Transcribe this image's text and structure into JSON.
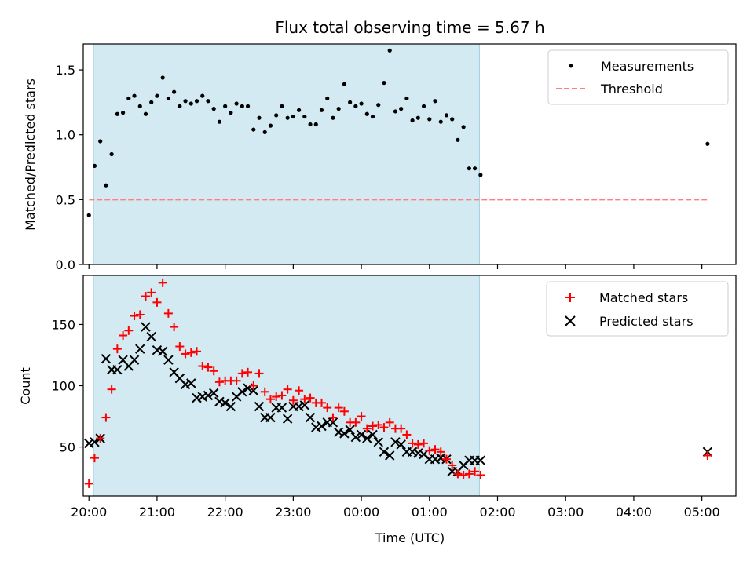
{
  "chart_data": [
    {
      "type": "scatter",
      "title": "Flux total observing time = 5.67 h",
      "ylabel": "Matched/Predicted stars",
      "xlabel": "",
      "xlim": [
        "19:55",
        "05:30"
      ],
      "ylim": [
        0,
        1.7
      ],
      "yticks": [
        "0.0",
        "0.5",
        "1.0",
        "1.5"
      ],
      "shaded_interval": [
        "20:04",
        "01:44"
      ],
      "legend_position": "upper right",
      "series": [
        {
          "name": "Measurements",
          "marker": "dot",
          "color": "#000000",
          "x": [
            "20:00",
            "20:05",
            "20:10",
            "20:15",
            "20:20",
            "20:25",
            "20:30",
            "20:35",
            "20:40",
            "20:45",
            "20:50",
            "20:55",
            "21:00",
            "21:05",
            "21:10",
            "21:15",
            "21:20",
            "21:25",
            "21:30",
            "21:35",
            "21:40",
            "21:45",
            "21:50",
            "21:55",
            "22:00",
            "22:05",
            "22:10",
            "22:15",
            "22:20",
            "22:25",
            "22:30",
            "22:35",
            "22:40",
            "22:45",
            "22:50",
            "22:55",
            "23:00",
            "23:05",
            "23:10",
            "23:15",
            "23:20",
            "23:25",
            "23:30",
            "23:35",
            "23:40",
            "23:45",
            "23:50",
            "23:55",
            "00:00",
            "00:05",
            "00:10",
            "00:15",
            "00:20",
            "00:25",
            "00:30",
            "00:35",
            "00:40",
            "00:45",
            "00:50",
            "00:55",
            "01:00",
            "01:05",
            "01:10",
            "01:15",
            "01:20",
            "01:25",
            "01:30",
            "01:35",
            "01:40",
            "01:45",
            "05:05"
          ],
          "y": [
            0.38,
            0.76,
            0.95,
            0.61,
            0.85,
            1.16,
            1.17,
            1.28,
            1.3,
            1.22,
            1.16,
            1.25,
            1.3,
            1.44,
            1.28,
            1.33,
            1.22,
            1.26,
            1.24,
            1.26,
            1.3,
            1.26,
            1.2,
            1.1,
            1.22,
            1.17,
            1.24,
            1.22,
            1.22,
            1.04,
            1.13,
            1.02,
            1.07,
            1.15,
            1.22,
            1.13,
            1.14,
            1.19,
            1.14,
            1.08,
            1.08,
            1.19,
            1.28,
            1.13,
            1.2,
            1.39,
            1.25,
            1.22,
            1.24,
            1.16,
            1.14,
            1.23,
            1.4,
            1.65,
            1.18,
            1.2,
            1.28,
            1.11,
            1.13,
            1.22,
            1.12,
            1.26,
            1.1,
            1.15,
            1.12,
            0.96,
            1.06,
            0.74,
            0.74,
            0.69,
            0.93
          ]
        },
        {
          "name": "Threshold",
          "marker": "dashed-line",
          "color": "#ff7f7f",
          "x": [
            "20:00",
            "05:05"
          ],
          "y": [
            0.5,
            0.5
          ]
        }
      ]
    },
    {
      "type": "scatter",
      "title": "",
      "ylabel": "Count",
      "xlabel": "Time (UTC)",
      "xlim": [
        "19:55",
        "05:30"
      ],
      "ylim": [
        10,
        190
      ],
      "yticks": [
        "50",
        "100",
        "150"
      ],
      "xticks": [
        "20:00",
        "21:00",
        "22:00",
        "23:00",
        "00:00",
        "01:00",
        "02:00",
        "03:00",
        "04:00",
        "05:00"
      ],
      "shaded_interval": [
        "20:04",
        "01:44"
      ],
      "legend_position": "upper right",
      "series": [
        {
          "name": "Matched stars",
          "marker": "plus",
          "color": "#ff0000",
          "x": [
            "20:00",
            "20:05",
            "20:10",
            "20:15",
            "20:20",
            "20:25",
            "20:30",
            "20:35",
            "20:40",
            "20:45",
            "20:50",
            "20:55",
            "21:00",
            "21:05",
            "21:10",
            "21:15",
            "21:20",
            "21:25",
            "21:30",
            "21:35",
            "21:40",
            "21:45",
            "21:50",
            "21:55",
            "22:00",
            "22:05",
            "22:10",
            "22:15",
            "22:20",
            "22:25",
            "22:30",
            "22:35",
            "22:40",
            "22:45",
            "22:50",
            "22:55",
            "23:00",
            "23:05",
            "23:10",
            "23:15",
            "23:20",
            "23:25",
            "23:30",
            "23:35",
            "23:40",
            "23:45",
            "23:50",
            "23:55",
            "00:00",
            "00:05",
            "00:10",
            "00:15",
            "00:20",
            "00:25",
            "00:30",
            "00:35",
            "00:40",
            "00:45",
            "00:50",
            "00:55",
            "01:00",
            "01:05",
            "01:10",
            "01:15",
            "01:20",
            "01:25",
            "01:30",
            "01:35",
            "01:40",
            "01:45",
            "05:05"
          ],
          "y": [
            20,
            41,
            57,
            74,
            97,
            130,
            141,
            145,
            157,
            158,
            173,
            176,
            168,
            184,
            159,
            148,
            132,
            126,
            127,
            128,
            116,
            115,
            112,
            103,
            104,
            104,
            104,
            110,
            111,
            100,
            110,
            95,
            89,
            91,
            92,
            97,
            88,
            96,
            89,
            90,
            86,
            86,
            82,
            74,
            82,
            79,
            70,
            70,
            75,
            65,
            67,
            68,
            66,
            70,
            65,
            65,
            60,
            53,
            52,
            53,
            47,
            48,
            46,
            40,
            35,
            28,
            27,
            28,
            30,
            27,
            43
          ]
        },
        {
          "name": "Predicted stars",
          "marker": "x",
          "color": "#000000",
          "x": [
            "20:00",
            "20:05",
            "20:10",
            "20:15",
            "20:20",
            "20:25",
            "20:30",
            "20:35",
            "20:40",
            "20:45",
            "20:50",
            "20:55",
            "21:00",
            "21:05",
            "21:10",
            "21:15",
            "21:20",
            "21:25",
            "21:30",
            "21:35",
            "21:40",
            "21:45",
            "21:50",
            "21:55",
            "22:00",
            "22:05",
            "22:10",
            "22:15",
            "22:20",
            "22:25",
            "22:30",
            "22:35",
            "22:40",
            "22:45",
            "22:50",
            "22:55",
            "23:00",
            "23:05",
            "23:10",
            "23:15",
            "23:20",
            "23:25",
            "23:30",
            "23:35",
            "23:40",
            "23:45",
            "23:50",
            "23:55",
            "00:00",
            "00:05",
            "00:10",
            "00:15",
            "00:20",
            "00:25",
            "00:30",
            "00:35",
            "00:40",
            "00:45",
            "00:50",
            "00:55",
            "01:00",
            "01:05",
            "01:10",
            "01:15",
            "01:20",
            "01:25",
            "01:30",
            "01:35",
            "01:40",
            "01:45",
            "05:05"
          ],
          "y": [
            53,
            54,
            57,
            122,
            113,
            113,
            121,
            116,
            121,
            130,
            148,
            140,
            129,
            128,
            121,
            111,
            106,
            101,
            102,
            90,
            91,
            92,
            94,
            87,
            86,
            83,
            91,
            95,
            98,
            96,
            83,
            74,
            74,
            82,
            82,
            73,
            83,
            83,
            84,
            74,
            66,
            67,
            70,
            70,
            62,
            61,
            64,
            58,
            60,
            57,
            60,
            54,
            46,
            43,
            54,
            52,
            46,
            46,
            45,
            44,
            40,
            40,
            41,
            40,
            30,
            30,
            35,
            39,
            39,
            39,
            46
          ]
        }
      ]
    }
  ]
}
